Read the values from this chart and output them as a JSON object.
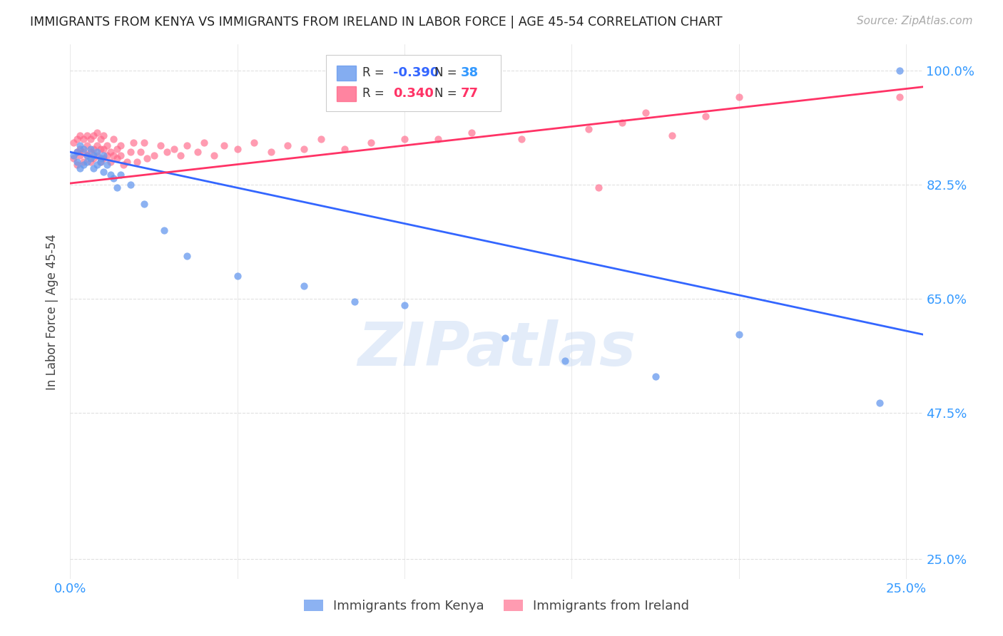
{
  "title": "IMMIGRANTS FROM KENYA VS IMMIGRANTS FROM IRELAND IN LABOR FORCE | AGE 45-54 CORRELATION CHART",
  "source": "Source: ZipAtlas.com",
  "ylabel": "In Labor Force | Age 45-54",
  "xlim": [
    0.0,
    0.255
  ],
  "ylim": [
    0.22,
    1.04
  ],
  "xtick_vals": [
    0.0,
    0.05,
    0.1,
    0.15,
    0.2,
    0.25
  ],
  "xtick_labels": [
    "0.0%",
    "",
    "",
    "",
    "",
    "25.0%"
  ],
  "ytick_positions": [
    0.25,
    0.475,
    0.65,
    0.825,
    1.0
  ],
  "ytick_labels": [
    "25.0%",
    "47.5%",
    "65.0%",
    "82.5%",
    "100.0%"
  ],
  "kenya_color": "#6699ee",
  "ireland_color": "#ff6688",
  "kenya_line_color": "#3366ff",
  "ireland_line_color": "#ff3366",
  "kenya_R": -0.39,
  "kenya_N": 38,
  "ireland_R": 0.34,
  "ireland_N": 77,
  "watermark_text": "ZIPatlas",
  "background_color": "#ffffff",
  "grid_color": "#e0e0e0",
  "kenya_trend_x": [
    0.0,
    0.255
  ],
  "kenya_trend_y": [
    0.875,
    0.595
  ],
  "ireland_trend_x": [
    0.0,
    0.255
  ],
  "ireland_trend_y": [
    0.827,
    0.975
  ],
  "kenya_x": [
    0.001,
    0.002,
    0.002,
    0.003,
    0.003,
    0.004,
    0.004,
    0.005,
    0.005,
    0.006,
    0.006,
    0.007,
    0.007,
    0.008,
    0.008,
    0.009,
    0.009,
    0.01,
    0.01,
    0.011,
    0.012,
    0.013,
    0.014,
    0.015,
    0.018,
    0.022,
    0.028,
    0.035,
    0.05,
    0.07,
    0.085,
    0.1,
    0.13,
    0.148,
    0.175,
    0.2,
    0.242,
    0.248
  ],
  "kenya_y": [
    0.87,
    0.86,
    0.875,
    0.885,
    0.85,
    0.88,
    0.855,
    0.87,
    0.86,
    0.88,
    0.865,
    0.87,
    0.85,
    0.855,
    0.875,
    0.86,
    0.865,
    0.845,
    0.87,
    0.855,
    0.84,
    0.835,
    0.82,
    0.84,
    0.825,
    0.795,
    0.755,
    0.715,
    0.685,
    0.67,
    0.645,
    0.64,
    0.59,
    0.555,
    0.53,
    0.595,
    0.49,
    1.0
  ],
  "ireland_x": [
    0.001,
    0.001,
    0.002,
    0.002,
    0.002,
    0.003,
    0.003,
    0.003,
    0.004,
    0.004,
    0.004,
    0.005,
    0.005,
    0.005,
    0.006,
    0.006,
    0.006,
    0.007,
    0.007,
    0.007,
    0.008,
    0.008,
    0.008,
    0.009,
    0.009,
    0.009,
    0.01,
    0.01,
    0.01,
    0.011,
    0.011,
    0.012,
    0.012,
    0.013,
    0.013,
    0.014,
    0.014,
    0.015,
    0.015,
    0.016,
    0.017,
    0.018,
    0.019,
    0.02,
    0.021,
    0.022,
    0.023,
    0.025,
    0.027,
    0.029,
    0.031,
    0.033,
    0.035,
    0.038,
    0.04,
    0.043,
    0.046,
    0.05,
    0.055,
    0.06,
    0.065,
    0.07,
    0.075,
    0.082,
    0.09,
    0.1,
    0.11,
    0.12,
    0.135,
    0.155,
    0.158,
    0.165,
    0.172,
    0.18,
    0.19,
    0.2,
    0.248
  ],
  "ireland_y": [
    0.865,
    0.89,
    0.875,
    0.895,
    0.855,
    0.88,
    0.87,
    0.9,
    0.86,
    0.875,
    0.895,
    0.87,
    0.885,
    0.9,
    0.86,
    0.875,
    0.895,
    0.865,
    0.88,
    0.9,
    0.87,
    0.885,
    0.905,
    0.86,
    0.88,
    0.895,
    0.865,
    0.88,
    0.9,
    0.87,
    0.885,
    0.86,
    0.875,
    0.87,
    0.895,
    0.865,
    0.88,
    0.87,
    0.885,
    0.855,
    0.86,
    0.875,
    0.89,
    0.86,
    0.875,
    0.89,
    0.865,
    0.87,
    0.885,
    0.875,
    0.88,
    0.87,
    0.885,
    0.875,
    0.89,
    0.87,
    0.885,
    0.88,
    0.89,
    0.875,
    0.885,
    0.88,
    0.895,
    0.88,
    0.89,
    0.895,
    0.895,
    0.905,
    0.895,
    0.91,
    0.82,
    0.92,
    0.935,
    0.9,
    0.93,
    0.96,
    0.96
  ]
}
